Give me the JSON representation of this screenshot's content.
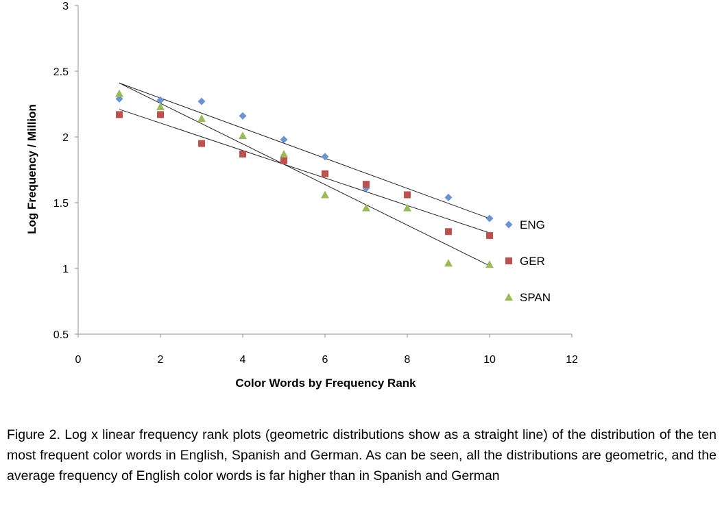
{
  "chart_data": {
    "type": "scatter",
    "title": "",
    "xlabel": "Color Words by Frequency Rank",
    "ylabel": "Log Frequency / Million",
    "xlim": [
      0,
      12
    ],
    "ylim": [
      0.5,
      3
    ],
    "xticks": [
      "0",
      "2",
      "4",
      "6",
      "8",
      "10",
      "12"
    ],
    "yticks": [
      "0.5",
      "1",
      "1.5",
      "2",
      "2.5",
      "3"
    ],
    "grid": false,
    "legend_position": "right",
    "series": [
      {
        "name": "ENG",
        "marker": "diamond",
        "color": "#6b93d0",
        "x": [
          1,
          2,
          3,
          4,
          5,
          6,
          7,
          8,
          9,
          10
        ],
        "y": [
          2.29,
          2.28,
          2.27,
          2.16,
          1.98,
          1.85,
          1.61,
          1.56,
          1.54,
          1.38
        ],
        "trendline": [
          [
            1,
            2.41
          ],
          [
            10,
            1.38
          ]
        ]
      },
      {
        "name": "GER",
        "marker": "square",
        "color": "#c0504d",
        "x": [
          1,
          2,
          3,
          4,
          5,
          6,
          7,
          8,
          9,
          10
        ],
        "y": [
          2.17,
          2.17,
          1.95,
          1.87,
          1.82,
          1.72,
          1.64,
          1.56,
          1.28,
          1.25
        ],
        "trendline": [
          [
            1,
            2.21
          ],
          [
            10,
            1.27
          ]
        ]
      },
      {
        "name": "SPAN",
        "marker": "triangle",
        "color": "#9bbb59",
        "x": [
          1,
          2,
          3,
          4,
          5,
          6,
          7,
          8,
          9,
          10
        ],
        "y": [
          2.33,
          2.23,
          2.14,
          2.01,
          1.87,
          1.56,
          1.46,
          1.46,
          1.04,
          1.03
        ],
        "trendline": [
          [
            1,
            2.41
          ],
          [
            10,
            1.02
          ]
        ]
      }
    ]
  },
  "caption": "Figure 2. Log x linear frequency rank plots (geometric distributions show as a straight line) of the distribution of the ten most frequent color words in English, Spanish and German. As can be seen, all the distributions are geometric, and the average frequency of English color words is far higher than in Spanish and German"
}
